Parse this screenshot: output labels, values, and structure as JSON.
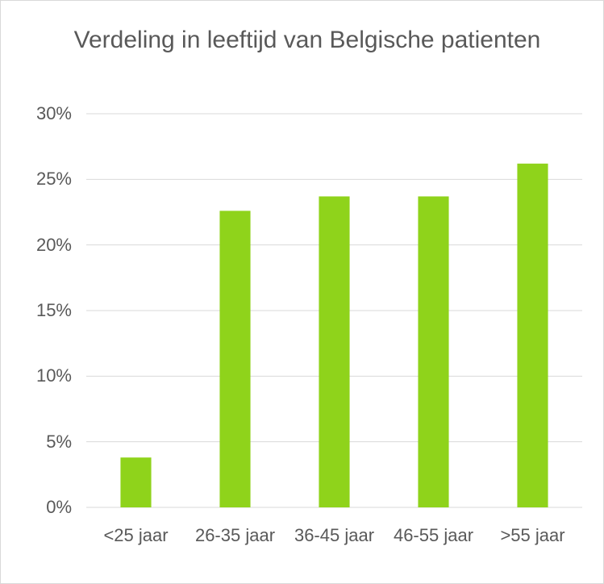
{
  "chart_data": {
    "type": "bar",
    "title": "Verdeling in leeftijd van Belgische patienten",
    "categories": [
      "<25 jaar",
      "26-35 jaar",
      "36-45 jaar",
      "46-55 jaar",
      ">55 jaar"
    ],
    "values": [
      3.8,
      22.6,
      23.7,
      23.7,
      26.2
    ],
    "color": "#8fd31b",
    "ylim": [
      0,
      30
    ],
    "yticks": [
      {
        "value": 0,
        "label": "0%"
      },
      {
        "value": 5,
        "label": "5%"
      },
      {
        "value": 10,
        "label": "10%"
      },
      {
        "value": 15,
        "label": "15%"
      },
      {
        "value": 20,
        "label": "20%"
      },
      {
        "value": 25,
        "label": "25%"
      },
      {
        "value": 30,
        "label": "30%"
      }
    ],
    "grid": true
  }
}
